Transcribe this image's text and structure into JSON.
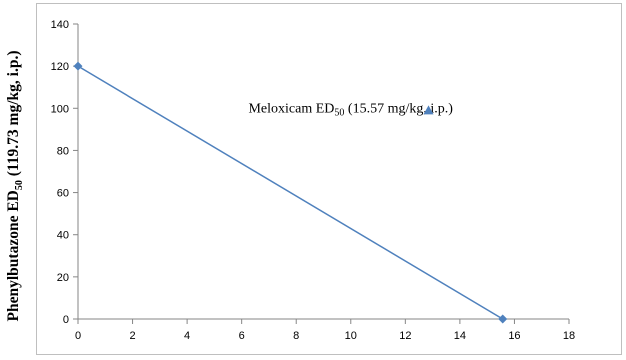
{
  "chart_data": {
    "type": "scatter",
    "title": "",
    "xlabel": "",
    "ylabel": {
      "prefix": "Phenylbutazone ED",
      "subscript": "50",
      "suffix": " (119.73 mg/kg, i.p.)"
    },
    "xlim": [
      0,
      18
    ],
    "ylim": [
      0,
      140
    ],
    "xticks": [
      "0",
      "2",
      "4",
      "6",
      "8",
      "10",
      "12",
      "14",
      "16",
      "18"
    ],
    "yticks": [
      "0",
      "20",
      "40",
      "60",
      "80",
      "100",
      "120",
      "140"
    ],
    "grid": false,
    "series": [
      {
        "marker": "diamond",
        "color": "#4f81bd",
        "line": true,
        "points": [
          [
            0,
            120
          ],
          [
            15.57,
            0
          ]
        ]
      }
    ],
    "annotations": [
      {
        "prefix": "Meloxicam ED",
        "subscript": "50",
        "suffix": " (15.57 mg/kg, i.p.)",
        "x": 6.25,
        "y": 98,
        "marker": "triangle",
        "marker_x": 12.85,
        "marker_y": 99,
        "marker_color": "#4f81bd"
      }
    ]
  }
}
